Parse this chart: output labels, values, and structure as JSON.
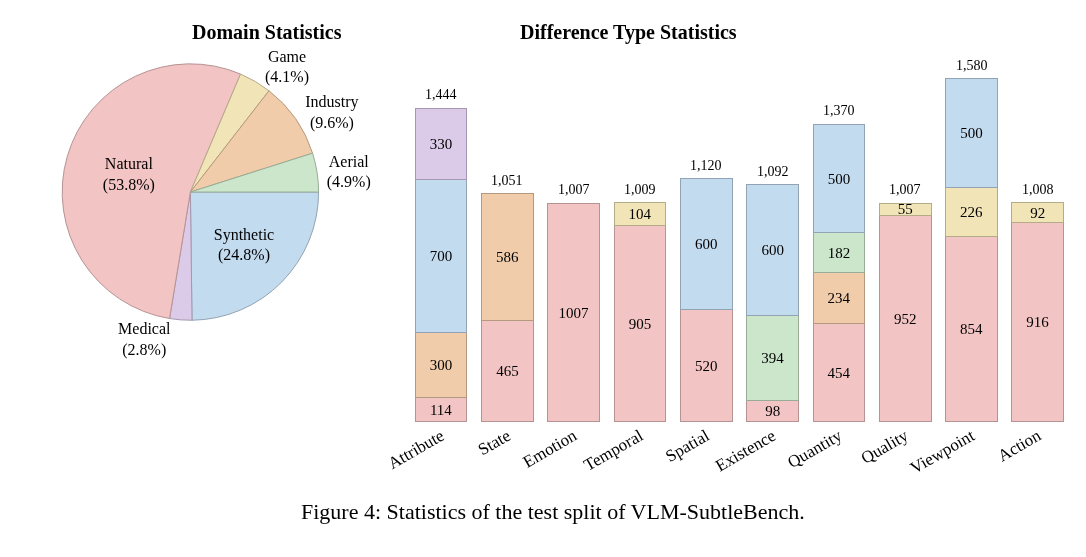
{
  "chart_data": [
    {
      "type": "pie",
      "title": "Domain Statistics",
      "categories": [
        "Synthetic",
        "Medical",
        "Natural",
        "Game",
        "Industry",
        "Aerial"
      ],
      "values": [
        24.8,
        2.8,
        53.8,
        4.1,
        9.6,
        4.9
      ],
      "value_labels": [
        "(24.8%)",
        "(2.8%)",
        "(53.8%)",
        "(4.1%)",
        "(9.6%)",
        "(4.9%)"
      ],
      "colors": [
        "#c3dbef",
        "#dccbe8",
        "#f3c4c4",
        "#f1e4b6",
        "#f1ccaa",
        "#cbe6cb"
      ],
      "annotations": [
        "Figure 4: Statistics of the test split of VLM-SubtleBench."
      ]
    },
    {
      "type": "bar",
      "title": "Difference Type Statistics",
      "stacked": true,
      "data_labels": true,
      "tick_labels": "x",
      "categories": [
        "Attribute",
        "State",
        "Emotion",
        "Temporal",
        "Spatial",
        "Existence",
        "Quantity",
        "Quality",
        "Viewpoint",
        "Action"
      ],
      "series": [
        {
          "color": "#f3c4c4",
          "values": [
            114,
            465,
            1007,
            905,
            520,
            98,
            454,
            952,
            854,
            916
          ]
        },
        {
          "color": "#f1ccaa",
          "values": [
            300,
            586,
            null,
            null,
            null,
            null,
            234,
            null,
            null,
            null
          ]
        },
        {
          "color": "#cbe6cb",
          "values": [
            null,
            null,
            null,
            null,
            null,
            394,
            182,
            null,
            null,
            null
          ]
        },
        {
          "color": "#f1e4b6",
          "values": [
            null,
            null,
            null,
            104,
            null,
            null,
            null,
            55,
            226,
            92
          ]
        },
        {
          "color": "#c3dbef",
          "values": [
            700,
            null,
            null,
            null,
            600,
            600,
            500,
            null,
            500,
            null
          ]
        },
        {
          "color": "#dccbe8",
          "values": [
            330,
            null,
            null,
            null,
            null,
            null,
            null,
            null,
            null,
            null
          ]
        }
      ],
      "totals": [
        "1,444",
        "1,051",
        "1,007",
        "1,009",
        "1,120",
        "1,092",
        "1,370",
        "1,007",
        "1,580",
        "1,008"
      ]
    }
  ]
}
